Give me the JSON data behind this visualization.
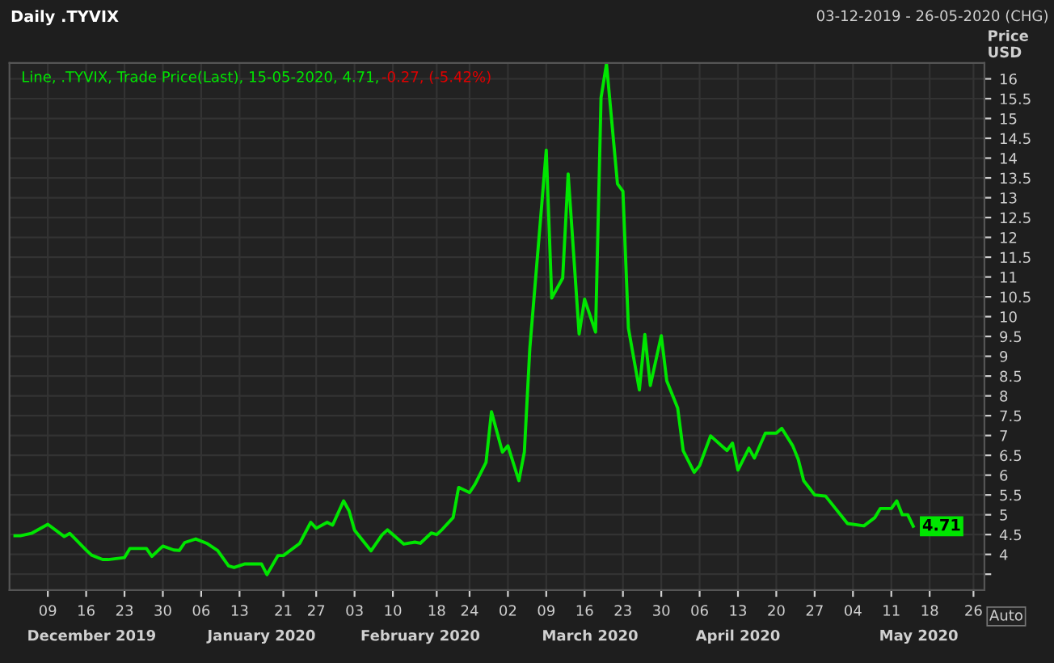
{
  "chart_data": {
    "type": "line",
    "title": "Daily .TYVIX",
    "subtitle": "03-12-2019 - 26-05-2020 (CHG)",
    "ylabel": "Price\nUSD",
    "annotations": [
      "Line, .TYVIX, Trade Price(Last), 15-05-2020, 4.71,",
      "-0.27, (-5.42%)",
      "Auto"
    ],
    "x": [
      "2019-12-03",
      "2019-12-04",
      "2019-12-06",
      "2019-12-09",
      "2019-12-12",
      "2019-12-13",
      "2019-12-16",
      "2019-12-17",
      "2019-12-19",
      "2019-12-20",
      "2019-12-23",
      "2019-12-24",
      "2019-12-27",
      "2019-12-28",
      "2019-12-30",
      "2020-01-01",
      "2020-01-02",
      "2020-01-03",
      "2020-01-05",
      "2020-01-07",
      "2020-01-09",
      "2020-01-11",
      "2020-01-12",
      "2020-01-14",
      "2020-01-17",
      "2020-01-18",
      "2020-01-20",
      "2020-01-21",
      "2020-01-24",
      "2020-01-26",
      "2020-01-27",
      "2020-01-29",
      "2020-01-30",
      "2020-02-01",
      "2020-02-02",
      "2020-02-03",
      "2020-02-06",
      "2020-02-08",
      "2020-02-09",
      "2020-02-12",
      "2020-02-14",
      "2020-02-15",
      "2020-02-17",
      "2020-02-18",
      "2020-02-19",
      "2020-02-21",
      "2020-02-22",
      "2020-02-24",
      "2020-02-25",
      "2020-02-27",
      "2020-02-28",
      "2020-03-01",
      "2020-03-02",
      "2020-03-04",
      "2020-03-05",
      "2020-03-06",
      "2020-03-09",
      "2020-03-10",
      "2020-03-12",
      "2020-03-13",
      "2020-03-15",
      "2020-03-16",
      "2020-03-18",
      "2020-03-19",
      "2020-03-20",
      "2020-03-22",
      "2020-03-23",
      "2020-03-24",
      "2020-03-26",
      "2020-03-27",
      "2020-03-28",
      "2020-03-30",
      "2020-03-31",
      "2020-04-02",
      "2020-04-03",
      "2020-04-05",
      "2020-04-06",
      "2020-04-08",
      "2020-04-11",
      "2020-04-12",
      "2020-04-13",
      "2020-04-15",
      "2020-04-16",
      "2020-04-18",
      "2020-04-20",
      "2020-04-21",
      "2020-04-23",
      "2020-04-24",
      "2020-04-25",
      "2020-04-27",
      "2020-04-29",
      "2020-05-03",
      "2020-05-06",
      "2020-05-08",
      "2020-05-09",
      "2020-05-11",
      "2020-05-12",
      "2020-05-13",
      "2020-05-14",
      "2020-05-15"
    ],
    "series": [
      {
        "color": "#00e600",
        "values": [
          4.47,
          4.47,
          4.53,
          4.76,
          4.45,
          4.53,
          4.11,
          3.98,
          3.87,
          3.87,
          3.92,
          4.15,
          4.15,
          3.95,
          4.21,
          4.11,
          4.1,
          4.3,
          4.39,
          4.28,
          4.1,
          3.71,
          3.67,
          3.76,
          3.76,
          3.49,
          3.97,
          3.97,
          4.28,
          4.81,
          4.66,
          4.81,
          4.74,
          5.35,
          5.1,
          4.61,
          4.09,
          4.49,
          4.62,
          4.26,
          4.31,
          4.28,
          4.54,
          4.5,
          4.63,
          4.93,
          5.69,
          5.56,
          5.77,
          6.32,
          7.6,
          6.58,
          6.74,
          5.86,
          6.58,
          9.2,
          14.2,
          10.47,
          10.97,
          13.6,
          9.56,
          10.44,
          9.61,
          15.52,
          16.38,
          13.35,
          13.16,
          9.71,
          8.15,
          9.55,
          8.26,
          9.52,
          8.38,
          7.69,
          6.62,
          6.07,
          6.24,
          6.99,
          6.62,
          6.81,
          6.13,
          6.68,
          6.43,
          7.06,
          7.06,
          7.18,
          6.74,
          6.4,
          5.86,
          5.5,
          5.47,
          4.78,
          4.72,
          4.93,
          5.16,
          5.16,
          5.35,
          5.0,
          5.0,
          4.71
        ],
        "value_labels": [
          null,
          null,
          null,
          null,
          null,
          null,
          null,
          null,
          null,
          null,
          null,
          null,
          null,
          null,
          null,
          null,
          null,
          null,
          null,
          null,
          null,
          null,
          null,
          null,
          null,
          null,
          null,
          null,
          null,
          null,
          null,
          null,
          null,
          null,
          null,
          null,
          null,
          null,
          null,
          null,
          null,
          null,
          null,
          null,
          null,
          null,
          null,
          null,
          null,
          null,
          null,
          null,
          null,
          null,
          null,
          null,
          null,
          null,
          null,
          null,
          null,
          null,
          null,
          null,
          null,
          null,
          null,
          null,
          null,
          null,
          null,
          null,
          null,
          null,
          null,
          null,
          null,
          null,
          null,
          null,
          null,
          null,
          null,
          null,
          null,
          null,
          null,
          null,
          null,
          null,
          null,
          null,
          null,
          null,
          null,
          null,
          null,
          null,
          null,
          "4.71"
        ]
      }
    ],
    "xlim": [
      "2019-12-02",
      "2020-05-28"
    ],
    "xticks": [
      {
        "value": "2019-12-09",
        "label": "09"
      },
      {
        "value": "2019-12-16",
        "label": "16"
      },
      {
        "value": "2019-12-23",
        "label": "23"
      },
      {
        "value": "2019-12-30",
        "label": "30"
      },
      {
        "value": "2020-01-06",
        "label": "06"
      },
      {
        "value": "2020-01-13",
        "label": "13"
      },
      {
        "value": "2020-01-21",
        "label": "21"
      },
      {
        "value": "2020-01-27",
        "label": "27"
      },
      {
        "value": "2020-02-03",
        "label": "03"
      },
      {
        "value": "2020-02-10",
        "label": "10"
      },
      {
        "value": "2020-02-18",
        "label": "18"
      },
      {
        "value": "2020-02-24",
        "label": "24"
      },
      {
        "value": "2020-03-02",
        "label": "02"
      },
      {
        "value": "2020-03-09",
        "label": "09"
      },
      {
        "value": "2020-03-16",
        "label": "16"
      },
      {
        "value": "2020-03-23",
        "label": "23"
      },
      {
        "value": "2020-03-30",
        "label": "30"
      },
      {
        "value": "2020-04-06",
        "label": "06"
      },
      {
        "value": "2020-04-13",
        "label": "13"
      },
      {
        "value": "2020-04-20",
        "label": "20"
      },
      {
        "value": "2020-04-27",
        "label": "27"
      },
      {
        "value": "2020-05-04",
        "label": "04"
      },
      {
        "value": "2020-05-11",
        "label": "11"
      },
      {
        "value": "2020-05-18",
        "label": "18"
      },
      {
        "value": "2020-05-26",
        "label": "26"
      }
    ],
    "x2lim": [
      "2019-12-02",
      "2020-05-28"
    ],
    "x2ticks": [
      {
        "value": "2019-12-17",
        "label": "December 2019"
      },
      {
        "value": "2020-01-17",
        "label": "January 2020"
      },
      {
        "value": "2020-02-15",
        "label": "February 2020"
      },
      {
        "value": "2020-03-17",
        "label": "March 2020"
      },
      {
        "value": "2020-04-13",
        "label": "April 2020"
      },
      {
        "value": "2020-05-16",
        "label": "May 2020"
      }
    ],
    "ylim": [
      3.1,
      16.4
    ],
    "yticks": [
      {
        "value": 3.5,
        "label": null
      },
      4,
      4.5,
      5,
      5.5,
      6,
      6.5,
      7,
      7.5,
      8,
      8.5,
      9,
      9.5,
      10,
      10.5,
      11,
      11.5,
      12,
      12.5,
      13,
      13.5,
      14,
      14.5,
      15,
      15.5,
      16
    ],
    "grid": true,
    "legend": false,
    "marker": "none",
    "line_style": "solid"
  }
}
